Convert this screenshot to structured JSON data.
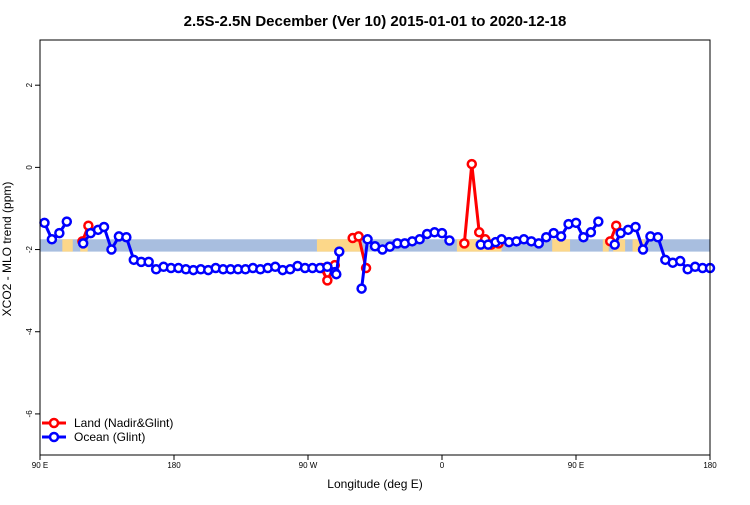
{
  "chart_data": {
    "type": "line",
    "title": "2.5S-2.5N December (Ver 10)   2015-01-01 to 2020-12-18",
    "xlabel": "Longitude (deg E)",
    "ylabel": "XCO2 - MLO trend (ppm)",
    "xlim": [
      90,
      540
    ],
    "ylim": [
      -7,
      3.1
    ],
    "x_ticks": [
      {
        "value": 90,
        "label": "90 E"
      },
      {
        "value": 180,
        "label": "180"
      },
      {
        "value": 270,
        "label": "90 W"
      },
      {
        "value": 360,
        "label": "0"
      },
      {
        "value": 450,
        "label": "90 E"
      },
      {
        "value": 540,
        "label": "180"
      }
    ],
    "y_ticks": [
      {
        "value": 2,
        "label": "2"
      },
      {
        "value": 0,
        "label": "0"
      },
      {
        "value": -2,
        "label": "-2"
      },
      {
        "value": -4,
        "label": "-4"
      },
      {
        "value": -6,
        "label": "-6"
      }
    ],
    "legend": {
      "position": "bottom-left",
      "entries": [
        "Land (Nadir&Glint)",
        "Ocean (Glint)"
      ]
    },
    "colors": {
      "land": "#ff0000",
      "ocean": "#0000ff",
      "band_ocean": "#a8bedf",
      "band_land": "#fcd789"
    },
    "bands": [
      {
        "name": "ocean-band",
        "x0": 90,
        "x1": 540,
        "y0": -2.05,
        "y1": -1.75
      },
      {
        "name": "land-band",
        "x0": 105,
        "x1": 112,
        "y0": -2.05,
        "y1": -1.75
      },
      {
        "name": "land-band",
        "x0": 117,
        "x1": 122,
        "y0": -2.05,
        "y1": -1.75
      },
      {
        "name": "land-band",
        "x0": 276,
        "x1": 306,
        "y0": -2.05,
        "y1": -1.75
      },
      {
        "name": "land-band",
        "x0": 370,
        "x1": 400,
        "y0": -2.05,
        "y1": -1.75
      },
      {
        "name": "land-band",
        "x0": 434,
        "x1": 446,
        "y0": -2.05,
        "y1": -1.75
      },
      {
        "name": "land-band",
        "x0": 468,
        "x1": 472,
        "y0": -2.05,
        "y1": -1.75
      },
      {
        "name": "land-band",
        "x0": 475,
        "x1": 483,
        "y0": -2.05,
        "y1": -1.75
      },
      {
        "name": "land-band",
        "x0": 488,
        "x1": 496,
        "y0": -2.05,
        "y1": -1.75
      }
    ],
    "series": [
      {
        "name": "Land (Nadir&Glint)",
        "key": "land",
        "segments": [
          [
            [
              118.5,
              -1.8
            ],
            [
              122.5,
              -1.42
            ]
          ],
          [
            [
              279,
              -2.45
            ],
            [
              283,
              -2.75
            ],
            [
              288,
              -2.38
            ]
          ],
          [
            [
              300,
              -1.72
            ],
            [
              304,
              -1.68
            ],
            [
              309,
              -2.45
            ]
          ],
          [
            [
              375,
              -1.85
            ],
            [
              380,
              0.08
            ],
            [
              385,
              -1.58
            ],
            [
              389,
              -1.75
            ],
            [
              393,
              -1.88
            ],
            [
              398,
              -1.85
            ]
          ],
          [
            [
              473,
              -1.8
            ],
            [
              477,
              -1.42
            ]
          ]
        ]
      },
      {
        "name": "Ocean (Glint)",
        "key": "ocean",
        "segments": [
          [
            [
              93,
              -1.35
            ],
            [
              98,
              -1.75
            ],
            [
              103,
              -1.6
            ],
            [
              108,
              -1.32
            ]
          ],
          [
            [
              119,
              -1.85
            ],
            [
              124,
              -1.6
            ],
            [
              129,
              -1.52
            ],
            [
              133,
              -1.45
            ],
            [
              138,
              -2.0
            ],
            [
              143,
              -1.68
            ],
            [
              148,
              -1.7
            ],
            [
              153,
              -2.25
            ],
            [
              158,
              -2.3
            ],
            [
              163,
              -2.3
            ],
            [
              168,
              -2.48
            ],
            [
              173,
              -2.42
            ],
            [
              178,
              -2.45
            ],
            [
              183,
              -2.45
            ],
            [
              188,
              -2.48
            ],
            [
              193,
              -2.5
            ],
            [
              198,
              -2.48
            ],
            [
              203,
              -2.5
            ],
            [
              208,
              -2.45
            ],
            [
              213,
              -2.48
            ],
            [
              218,
              -2.48
            ],
            [
              223,
              -2.48
            ],
            [
              228,
              -2.48
            ],
            [
              233,
              -2.45
            ],
            [
              238,
              -2.48
            ],
            [
              243,
              -2.45
            ],
            [
              248,
              -2.42
            ],
            [
              253,
              -2.5
            ],
            [
              258,
              -2.48
            ],
            [
              263,
              -2.4
            ],
            [
              268,
              -2.45
            ],
            [
              273,
              -2.45
            ],
            [
              278,
              -2.45
            ],
            [
              283,
              -2.42
            ],
            [
              288,
              -2.55
            ],
            [
              289,
              -2.6
            ],
            [
              291,
              -2.05
            ]
          ],
          [
            [
              306,
              -2.95
            ],
            [
              310,
              -1.75
            ],
            [
              315,
              -1.92
            ],
            [
              320,
              -2.0
            ],
            [
              325,
              -1.93
            ],
            [
              330,
              -1.85
            ],
            [
              335,
              -1.85
            ],
            [
              340,
              -1.8
            ],
            [
              345,
              -1.75
            ],
            [
              350,
              -1.62
            ],
            [
              355,
              -1.58
            ],
            [
              360,
              -1.6
            ],
            [
              365,
              -1.78
            ]
          ],
          [
            [
              386,
              -1.88
            ],
            [
              391,
              -1.88
            ],
            [
              396,
              -1.82
            ],
            [
              400,
              -1.75
            ],
            [
              405,
              -1.82
            ],
            [
              410,
              -1.8
            ],
            [
              415,
              -1.75
            ],
            [
              420,
              -1.8
            ],
            [
              425,
              -1.85
            ],
            [
              430,
              -1.7
            ],
            [
              435,
              -1.6
            ],
            [
              440,
              -1.68
            ],
            [
              445,
              -1.38
            ],
            [
              450,
              -1.35
            ],
            [
              455,
              -1.7
            ],
            [
              460,
              -1.58
            ],
            [
              465,
              -1.32
            ]
          ],
          [
            [
              476,
              -1.88
            ],
            [
              480,
              -1.6
            ],
            [
              485,
              -1.52
            ],
            [
              490,
              -1.45
            ],
            [
              495,
              -2.0
            ],
            [
              500,
              -1.68
            ],
            [
              505,
              -1.7
            ],
            [
              510,
              -2.25
            ],
            [
              515,
              -2.32
            ],
            [
              520,
              -2.28
            ],
            [
              525,
              -2.48
            ],
            [
              530,
              -2.42
            ],
            [
              535,
              -2.45
            ],
            [
              540,
              -2.45
            ]
          ]
        ]
      }
    ]
  }
}
